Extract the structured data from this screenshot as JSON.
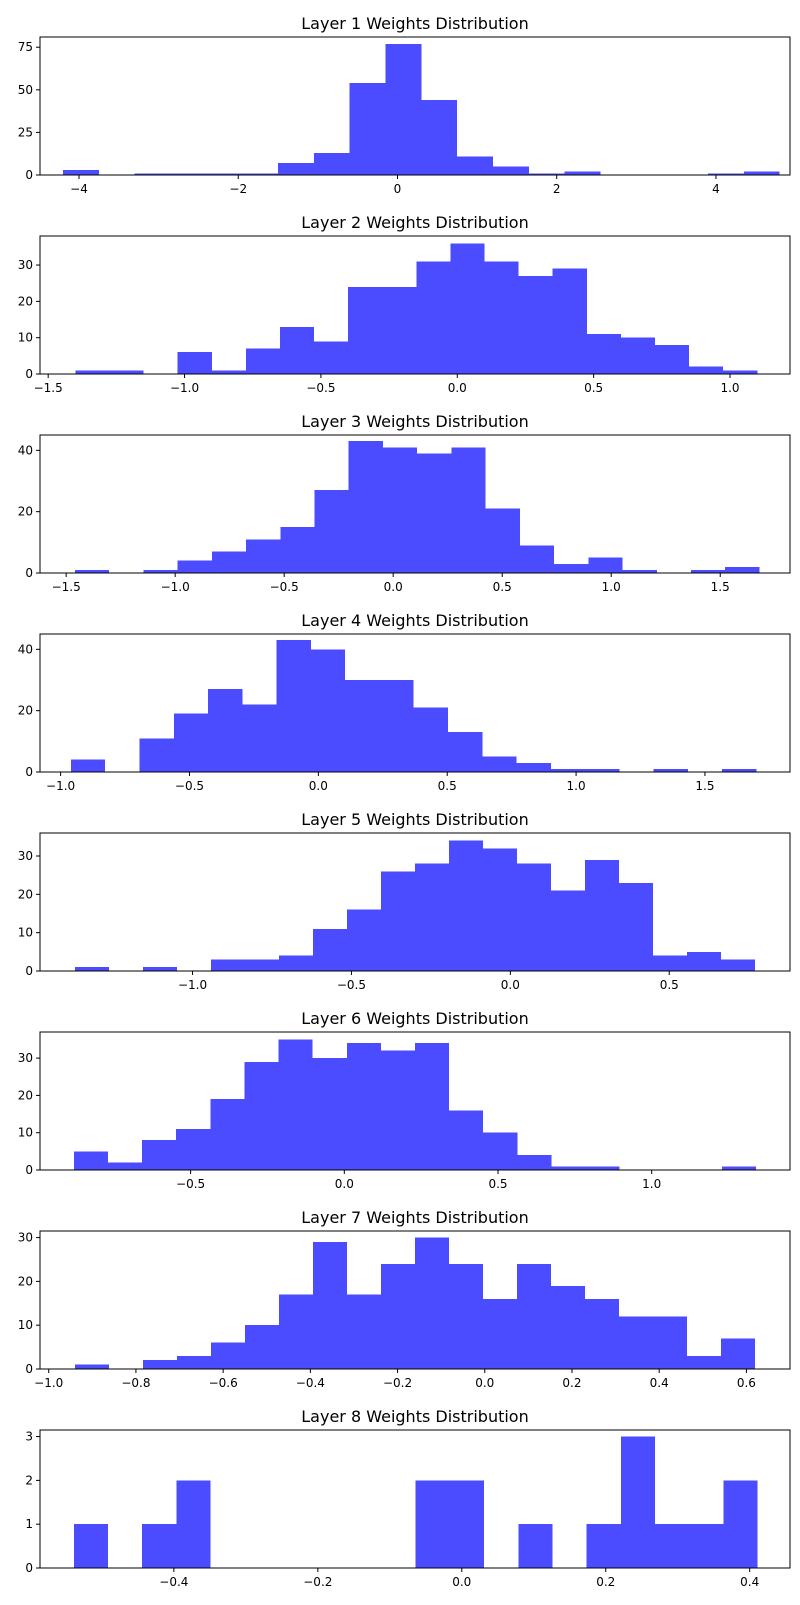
{
  "chart_data": [
    {
      "type": "bar",
      "title": "Layer 1 Weights Distribution",
      "color": "#4b4bff",
      "xlim": [
        -4.49,
        4.93
      ],
      "ylim": [
        0,
        81
      ],
      "xticks": [
        -4,
        -2,
        0,
        2,
        4
      ],
      "xtick_labels": [
        "−4",
        "−2",
        "0",
        "2",
        "4"
      ],
      "yticks": [
        0,
        25,
        50,
        75
      ],
      "bin_edges": [
        -4.2,
        -3.75,
        -3.3,
        -2.85,
        -2.4,
        -1.95,
        -1.5,
        -1.05,
        -0.6,
        -0.15,
        0.3,
        0.75,
        1.2,
        1.65,
        2.1,
        2.55,
        3.0,
        3.45,
        3.9,
        4.35,
        4.8
      ],
      "counts": [
        3,
        0,
        1,
        1,
        1,
        1,
        7,
        13,
        54,
        77,
        44,
        11,
        5,
        1,
        2,
        0,
        0,
        0,
        1,
        2
      ]
    },
    {
      "type": "bar",
      "title": "Layer 2 Weights Distribution",
      "color": "#4b4bff",
      "xlim": [
        -1.53,
        1.22
      ],
      "ylim": [
        0,
        38
      ],
      "xticks": [
        -1.5,
        -1.0,
        -0.5,
        0.0,
        0.5,
        1.0
      ],
      "xtick_labels": [
        "−1.5",
        "−1.0",
        "−0.5",
        "0.0",
        "0.5",
        "1.0"
      ],
      "yticks": [
        0,
        10,
        20,
        30
      ],
      "bin_edges": [
        -1.4,
        -1.275,
        -1.15,
        -1.025,
        -0.9,
        -0.775,
        -0.65,
        -0.525,
        -0.4,
        -0.275,
        -0.15,
        -0.025,
        0.1,
        0.225,
        0.35,
        0.475,
        0.6,
        0.725,
        0.85,
        0.975,
        1.1
      ],
      "counts": [
        1,
        1,
        0,
        6,
        1,
        7,
        13,
        9,
        24,
        24,
        31,
        36,
        31,
        27,
        29,
        11,
        10,
        8,
        2,
        1
      ]
    },
    {
      "type": "bar",
      "title": "Layer 3 Weights Distribution",
      "color": "#4b4bff",
      "xlim": [
        -1.62,
        1.82
      ],
      "ylim": [
        0,
        45
      ],
      "xticks": [
        -1.5,
        -1.0,
        -0.5,
        0.0,
        0.5,
        1.0,
        1.5
      ],
      "xtick_labels": [
        "−1.5",
        "−1.0",
        "−0.5",
        "0.0",
        "0.5",
        "1.0",
        "1.5"
      ],
      "yticks": [
        0,
        20,
        40
      ],
      "bin_edges": [
        -1.46,
        -1.303,
        -1.146,
        -0.989,
        -0.832,
        -0.675,
        -0.518,
        -0.361,
        -0.204,
        -0.047,
        0.11,
        0.267,
        0.424,
        0.581,
        0.738,
        0.895,
        1.052,
        1.209,
        1.366,
        1.523,
        1.68
      ],
      "counts": [
        1,
        0,
        1,
        4,
        7,
        11,
        15,
        27,
        43,
        41,
        39,
        41,
        21,
        9,
        3,
        5,
        1,
        0,
        1,
        2
      ]
    },
    {
      "type": "bar",
      "title": "Layer 4 Weights Distribution",
      "color": "#4b4bff",
      "xlim": [
        -1.08,
        1.83
      ],
      "ylim": [
        0,
        45
      ],
      "xticks": [
        -1.0,
        -0.5,
        0.0,
        0.5,
        1.0,
        1.5
      ],
      "xtick_labels": [
        "−1.0",
        "−0.5",
        "0.0",
        "0.5",
        "1.0",
        "1.5"
      ],
      "yticks": [
        0,
        20,
        40
      ],
      "bin_edges": [
        -0.96,
        -0.827,
        -0.694,
        -0.561,
        -0.428,
        -0.295,
        -0.162,
        -0.029,
        0.104,
        0.237,
        0.37,
        0.503,
        0.636,
        0.769,
        0.902,
        1.035,
        1.168,
        1.301,
        1.434,
        1.567,
        1.7
      ],
      "counts": [
        4,
        0,
        11,
        19,
        27,
        22,
        43,
        40,
        30,
        30,
        21,
        13,
        5,
        3,
        1,
        1,
        0,
        1,
        0,
        1
      ]
    },
    {
      "type": "bar",
      "title": "Layer 5 Weights Distribution",
      "color": "#4b4bff",
      "xlim": [
        -1.48,
        0.88
      ],
      "ylim": [
        0,
        36
      ],
      "xticks": [
        -1.0,
        -0.5,
        0.0,
        0.5
      ],
      "xtick_labels": [
        "−1.0",
        "−0.5",
        "0.0",
        "0.5"
      ],
      "yticks": [
        0,
        10,
        20,
        30
      ],
      "bin_edges": [
        -1.37,
        -1.263,
        -1.156,
        -1.049,
        -0.942,
        -0.835,
        -0.728,
        -0.621,
        -0.514,
        -0.407,
        -0.3,
        -0.193,
        -0.086,
        0.021,
        0.128,
        0.235,
        0.342,
        0.449,
        0.556,
        0.663,
        0.77
      ],
      "counts": [
        1,
        0,
        1,
        0,
        3,
        3,
        4,
        11,
        16,
        26,
        28,
        34,
        32,
        28,
        21,
        29,
        23,
        4,
        5,
        3
      ]
    },
    {
      "type": "bar",
      "title": "Layer 6 Weights Distribution",
      "color": "#4b4bff",
      "xlim": [
        -0.99,
        1.45
      ],
      "ylim": [
        0,
        37
      ],
      "xticks": [
        -0.5,
        0.0,
        0.5,
        1.0
      ],
      "xtick_labels": [
        "−0.5",
        "0.0",
        "0.5",
        "1.0"
      ],
      "yticks": [
        0,
        10,
        20,
        30
      ],
      "bin_edges": [
        -0.88,
        -0.769,
        -0.658,
        -0.547,
        -0.436,
        -0.325,
        -0.214,
        -0.103,
        0.008,
        0.119,
        0.23,
        0.341,
        0.452,
        0.563,
        0.674,
        0.785,
        0.896,
        1.007,
        1.118,
        1.229,
        1.34
      ],
      "counts": [
        5,
        2,
        8,
        11,
        19,
        29,
        35,
        30,
        34,
        32,
        34,
        16,
        10,
        4,
        1,
        1,
        0,
        0,
        0,
        1
      ]
    },
    {
      "type": "bar",
      "title": "Layer 7 Weights Distribution",
      "color": "#4b4bff",
      "xlim": [
        -1.02,
        0.7
      ],
      "ylim": [
        0,
        31.5
      ],
      "xticks": [
        -1.0,
        -0.8,
        -0.6,
        -0.4,
        -0.2,
        0.0,
        0.2,
        0.4,
        0.6
      ],
      "xtick_labels": [
        "−1.0",
        "−0.8",
        "−0.6",
        "−0.4",
        "−0.2",
        "0.0",
        "0.2",
        "0.4",
        "0.6"
      ],
      "yticks": [
        0,
        10,
        20,
        30
      ],
      "bin_edges": [
        -0.94,
        -0.862,
        -0.784,
        -0.706,
        -0.628,
        -0.55,
        -0.472,
        -0.394,
        -0.316,
        -0.238,
        -0.16,
        -0.082,
        -0.004,
        0.074,
        0.152,
        0.23,
        0.308,
        0.386,
        0.464,
        0.542,
        0.62
      ],
      "counts": [
        1,
        0,
        2,
        3,
        6,
        10,
        17,
        29,
        17,
        24,
        30,
        24,
        16,
        24,
        19,
        16,
        12,
        12,
        3,
        7
      ]
    },
    {
      "type": "bar",
      "title": "Layer 8 Weights Distribution",
      "color": "#4b4bff",
      "xlim": [
        -0.586,
        0.456
      ],
      "ylim": [
        0,
        3.15
      ],
      "xticks": [
        -0.4,
        -0.2,
        0.0,
        0.2,
        0.4
      ],
      "xtick_labels": [
        "−0.4",
        "−0.2",
        "0.0",
        "0.2",
        "0.4"
      ],
      "yticks": [
        0,
        1,
        2,
        3
      ],
      "bin_edges": [
        -0.539,
        -0.4915,
        -0.444,
        -0.3965,
        -0.349,
        -0.3015,
        -0.254,
        -0.2065,
        -0.159,
        -0.1115,
        -0.064,
        -0.0165,
        0.031,
        0.0785,
        0.126,
        0.1735,
        0.221,
        0.2685,
        0.316,
        0.3635,
        0.411
      ],
      "counts": [
        1,
        0,
        1,
        2,
        0,
        0,
        0,
        0,
        0,
        0,
        2,
        2,
        0,
        1,
        0,
        1,
        3,
        1,
        1,
        2
      ]
    }
  ]
}
